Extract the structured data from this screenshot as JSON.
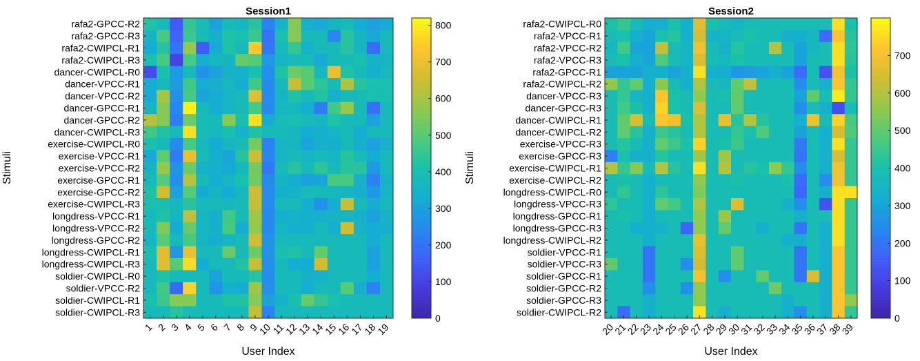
{
  "chart_data": [
    {
      "type": "heatmap",
      "title": "Session1",
      "xlabel": "User Index",
      "ylabel": "Stimuli",
      "x": [
        "1",
        "2",
        "3",
        "4",
        "5",
        "6",
        "7",
        "8",
        "9",
        "10",
        "11",
        "12",
        "13",
        "14",
        "15",
        "16",
        "17",
        "18",
        "19"
      ],
      "y": [
        "rafa2-GPCC-R2",
        "rafa2-GPCC-R3",
        "rafa2-CWIPCL-R1",
        "rafa2-CWIPCL-R3",
        "dancer-CWIPCL-R0",
        "dancer-VPCC-R1",
        "dancer-VPCC-R2",
        "dancer-GPCC-R1",
        "dancer-GPCC-R2",
        "dancer-CWIPCL-R3",
        "exercise-CWIPCL-R0",
        "exercise-VPCC-R1",
        "exercise-VPCC-R2",
        "exercise-GPCC-R1",
        "exercise-GPCC-R2",
        "exercise-CWIPCL-R3",
        "longdress-VPCC-R1",
        "longdress-VPCC-R2",
        "longdress-GPCC-R2",
        "longdress-CWIPCL-R1",
        "longdress-CWIPCL-R3",
        "soldier-CWIPCL-R0",
        "soldier-VPCC-R2",
        "soldier-CWIPCL-R1",
        "soldier-CWIPCL-R3"
      ],
      "colorbar": {
        "min": 0,
        "max": 820,
        "ticks": [
          0,
          100,
          200,
          300,
          400,
          500,
          600,
          700,
          800
        ]
      },
      "colormap": "parula",
      "values": [
        [
          420,
          380,
          150,
          450,
          390,
          300,
          380,
          370,
          430,
          230,
          350,
          560,
          340,
          320,
          360,
          380,
          330,
          300,
          330
        ],
        [
          360,
          480,
          170,
          460,
          380,
          340,
          420,
          400,
          460,
          200,
          400,
          560,
          380,
          380,
          240,
          430,
          360,
          320,
          380
        ],
        [
          330,
          430,
          200,
          580,
          150,
          320,
          420,
          380,
          740,
          210,
          380,
          450,
          350,
          380,
          380,
          430,
          360,
          190,
          380
        ],
        [
          400,
          480,
          100,
          480,
          330,
          370,
          360,
          520,
          500,
          280,
          360,
          380,
          380,
          320,
          380,
          380,
          400,
          350,
          360
        ],
        [
          120,
          400,
          280,
          380,
          270,
          300,
          350,
          350,
          400,
          260,
          420,
          530,
          500,
          370,
          700,
          420,
          380,
          340,
          380
        ],
        [
          330,
          380,
          290,
          470,
          330,
          340,
          370,
          330,
          470,
          250,
          370,
          640,
          500,
          440,
          380,
          610,
          430,
          400,
          400
        ],
        [
          320,
          600,
          260,
          480,
          310,
          330,
          360,
          380,
          680,
          250,
          360,
          420,
          380,
          420,
          340,
          380,
          380,
          400,
          400
        ],
        [
          360,
          560,
          240,
          800,
          380,
          330,
          360,
          380,
          480,
          250,
          370,
          370,
          330,
          220,
          470,
          580,
          380,
          200,
          380
        ],
        [
          620,
          560,
          220,
          530,
          390,
          380,
          560,
          400,
          780,
          330,
          390,
          400,
          380,
          360,
          420,
          380,
          380,
          300,
          380
        ],
        [
          470,
          420,
          380,
          780,
          390,
          370,
          400,
          350,
          420,
          380,
          380,
          360,
          330,
          340,
          360,
          380,
          330,
          380,
          380
        ],
        [
          400,
          380,
          250,
          480,
          370,
          320,
          360,
          390,
          540,
          230,
          360,
          360,
          310,
          340,
          340,
          380,
          340,
          300,
          340
        ],
        [
          320,
          510,
          220,
          700,
          380,
          340,
          310,
          430,
          650,
          240,
          360,
          380,
          360,
          380,
          360,
          430,
          380,
          330,
          380
        ],
        [
          360,
          580,
          270,
          530,
          350,
          340,
          320,
          370,
          540,
          210,
          380,
          430,
          380,
          440,
          380,
          430,
          430,
          280,
          380
        ],
        [
          380,
          500,
          260,
          620,
          380,
          330,
          360,
          400,
          540,
          250,
          360,
          330,
          300,
          310,
          480,
          480,
          340,
          230,
          350
        ],
        [
          420,
          660,
          300,
          500,
          320,
          360,
          330,
          370,
          650,
          250,
          340,
          350,
          380,
          380,
          370,
          360,
          340,
          280,
          360
        ],
        [
          400,
          400,
          370,
          430,
          380,
          380,
          370,
          380,
          640,
          250,
          380,
          380,
          330,
          260,
          330,
          640,
          380,
          330,
          380
        ],
        [
          380,
          420,
          360,
          630,
          360,
          340,
          470,
          380,
          590,
          250,
          340,
          350,
          340,
          340,
          360,
          360,
          340,
          300,
          350
        ],
        [
          380,
          550,
          330,
          520,
          360,
          340,
          480,
          330,
          580,
          250,
          360,
          340,
          340,
          380,
          340,
          660,
          350,
          330,
          340
        ],
        [
          360,
          500,
          380,
          480,
          360,
          330,
          360,
          380,
          660,
          270,
          380,
          380,
          380,
          380,
          380,
          380,
          380,
          330,
          380
        ],
        [
          400,
          680,
          280,
          700,
          380,
          380,
          520,
          380,
          530,
          270,
          400,
          420,
          380,
          520,
          380,
          380,
          380,
          300,
          380
        ],
        [
          380,
          680,
          500,
          770,
          330,
          380,
          380,
          420,
          640,
          260,
          380,
          330,
          330,
          660,
          380,
          380,
          380,
          300,
          380
        ],
        [
          380,
          420,
          380,
          380,
          380,
          300,
          380,
          380,
          430,
          250,
          380,
          380,
          340,
          350,
          380,
          380,
          380,
          330,
          380
        ],
        [
          380,
          470,
          180,
          760,
          380,
          270,
          340,
          330,
          590,
          260,
          380,
          380,
          330,
          380,
          380,
          500,
          330,
          230,
          380
        ],
        [
          400,
          460,
          560,
          560,
          380,
          380,
          420,
          420,
          560,
          300,
          350,
          400,
          520,
          450,
          400,
          380,
          380,
          380,
          380
        ],
        [
          380,
          380,
          430,
          380,
          380,
          380,
          380,
          380,
          640,
          230,
          380,
          380,
          380,
          380,
          380,
          380,
          380,
          380,
          380
        ]
      ]
    },
    {
      "type": "heatmap",
      "title": "Session2",
      "xlabel": "User Index",
      "ylabel": "Stimuli",
      "x": [
        "20",
        "21",
        "22",
        "23",
        "24",
        "25",
        "26",
        "27",
        "28",
        "29",
        "30",
        "31",
        "32",
        "33",
        "34",
        "35",
        "36",
        "37",
        "38",
        "39"
      ],
      "y": [
        "rafa2-CWIPCL-R0",
        "rafa2-VPCC-R1",
        "rafa2-VPCC-R2",
        "rafa2-VPCC-R3",
        "rafa2-GPCC-R1",
        "rafa2-CWIPCL-R2",
        "dancer-VPCC-R3",
        "dancer-GPCC-R3",
        "dancer-CWIPCL-R1",
        "dancer-CWIPCL-R2",
        "exercise-VPCC-R3",
        "exercise-GPCC-R3",
        "exercise-CWIPCL-R1",
        "exercise-CWIPCL-R2",
        "longdress-CWIPCL-R0",
        "longdress-VPCC-R3",
        "longdress-GPCC-R1",
        "longdress-GPCC-R3",
        "longdress-CWIPCL-R2",
        "soldier-VPCC-R1",
        "soldier-VPCC-R3",
        "soldier-GPCC-R1",
        "soldier-GPCC-R2",
        "soldier-GPCC-R3",
        "soldier-CWIPCL-R2"
      ],
      "colorbar": {
        "min": 0,
        "max": 800,
        "ticks": [
          0,
          100,
          200,
          300,
          400,
          500,
          600,
          700
        ]
      },
      "colormap": "parula",
      "values": [
        [
          400,
          440,
          380,
          330,
          330,
          400,
          330,
          660,
          400,
          370,
          350,
          380,
          380,
          380,
          380,
          380,
          380,
          380,
          760,
          400
        ],
        [
          380,
          400,
          330,
          300,
          400,
          420,
          330,
          650,
          340,
          350,
          380,
          400,
          380,
          380,
          330,
          330,
          360,
          180,
          720,
          420
        ],
        [
          360,
          460,
          300,
          300,
          620,
          380,
          350,
          690,
          380,
          340,
          420,
          380,
          380,
          600,
          380,
          300,
          360,
          380,
          760,
          430
        ],
        [
          380,
          400,
          330,
          300,
          480,
          380,
          350,
          660,
          380,
          360,
          400,
          380,
          380,
          380,
          380,
          300,
          380,
          380,
          760,
          420
        ],
        [
          300,
          300,
          300,
          330,
          330,
          300,
          330,
          760,
          330,
          320,
          270,
          280,
          300,
          330,
          300,
          180,
          380,
          130,
          700,
          400
        ],
        [
          560,
          440,
          500,
          330,
          550,
          380,
          330,
          600,
          380,
          360,
          500,
          620,
          380,
          380,
          380,
          250,
          380,
          330,
          720,
          440
        ],
        [
          380,
          440,
          350,
          330,
          720,
          400,
          380,
          560,
          380,
          400,
          500,
          380,
          380,
          380,
          380,
          300,
          500,
          380,
          780,
          440
        ],
        [
          380,
          460,
          400,
          330,
          740,
          400,
          380,
          660,
          380,
          380,
          500,
          380,
          380,
          380,
          380,
          250,
          380,
          330,
          120,
          380
        ],
        [
          380,
          500,
          650,
          380,
          720,
          690,
          400,
          600,
          380,
          680,
          420,
          600,
          420,
          380,
          380,
          330,
          690,
          380,
          740,
          470
        ],
        [
          380,
          500,
          420,
          330,
          450,
          420,
          380,
          600,
          380,
          380,
          440,
          400,
          480,
          380,
          380,
          300,
          380,
          330,
          650,
          480
        ],
        [
          380,
          420,
          380,
          330,
          500,
          450,
          400,
          740,
          380,
          400,
          450,
          380,
          380,
          380,
          380,
          210,
          380,
          330,
          760,
          440
        ],
        [
          220,
          400,
          330,
          330,
          420,
          380,
          380,
          580,
          380,
          580,
          380,
          380,
          380,
          380,
          380,
          200,
          380,
          330,
          650,
          440
        ],
        [
          600,
          440,
          550,
          380,
          600,
          420,
          380,
          760,
          380,
          600,
          380,
          420,
          400,
          560,
          440,
          250,
          380,
          330,
          700,
          440
        ],
        [
          380,
          400,
          380,
          330,
          380,
          380,
          380,
          560,
          380,
          380,
          400,
          380,
          380,
          380,
          400,
          180,
          380,
          250,
          700,
          440
        ],
        [
          380,
          440,
          380,
          330,
          430,
          380,
          380,
          540,
          380,
          380,
          380,
          380,
          380,
          380,
          380,
          170,
          380,
          330,
          760,
          760
        ],
        [
          430,
          380,
          380,
          330,
          500,
          460,
          380,
          600,
          380,
          380,
          660,
          380,
          380,
          380,
          330,
          250,
          380,
          130,
          760,
          440
        ],
        [
          380,
          400,
          380,
          330,
          380,
          380,
          380,
          560,
          380,
          570,
          380,
          380,
          380,
          380,
          380,
          330,
          380,
          380,
          760,
          440
        ],
        [
          380,
          380,
          330,
          330,
          340,
          380,
          170,
          560,
          380,
          500,
          380,
          380,
          330,
          380,
          380,
          200,
          380,
          330,
          760,
          440
        ],
        [
          380,
          380,
          380,
          330,
          380,
          380,
          380,
          680,
          380,
          380,
          380,
          380,
          380,
          380,
          330,
          330,
          380,
          330,
          760,
          440
        ],
        [
          380,
          380,
          380,
          200,
          380,
          380,
          380,
          660,
          380,
          380,
          500,
          380,
          380,
          380,
          380,
          200,
          380,
          330,
          720,
          440
        ],
        [
          500,
          380,
          380,
          200,
          380,
          380,
          250,
          640,
          380,
          380,
          500,
          380,
          380,
          380,
          380,
          200,
          380,
          330,
          720,
          440
        ],
        [
          380,
          380,
          380,
          200,
          380,
          380,
          380,
          700,
          380,
          250,
          380,
          380,
          500,
          380,
          380,
          200,
          650,
          330,
          720,
          440
        ],
        [
          380,
          380,
          380,
          250,
          380,
          380,
          250,
          560,
          380,
          380,
          380,
          380,
          380,
          520,
          380,
          380,
          380,
          330,
          720,
          440
        ],
        [
          380,
          380,
          380,
          330,
          380,
          380,
          380,
          560,
          380,
          380,
          380,
          380,
          380,
          380,
          330,
          380,
          380,
          330,
          720,
          560
        ],
        [
          380,
          180,
          380,
          330,
          380,
          380,
          380,
          760,
          380,
          330,
          380,
          380,
          380,
          380,
          330,
          250,
          380,
          330,
          720,
          440
        ]
      ]
    }
  ]
}
